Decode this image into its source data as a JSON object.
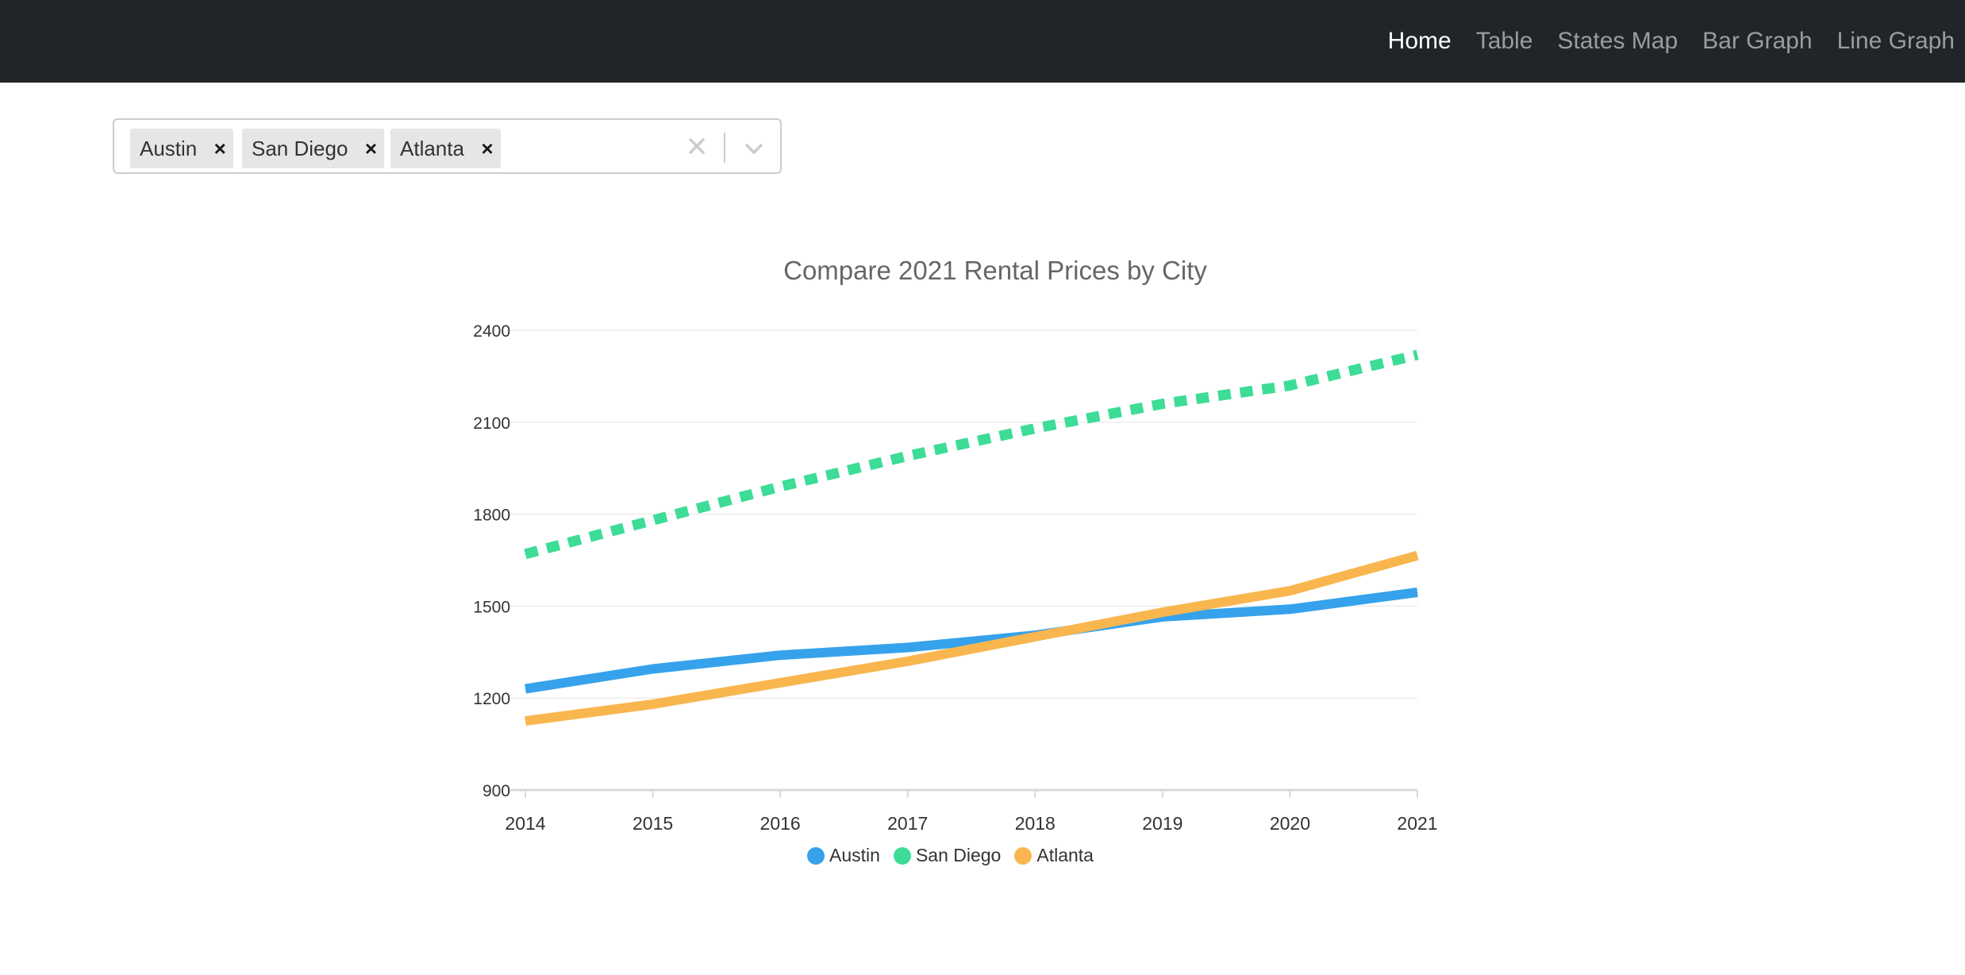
{
  "nav": {
    "items": [
      {
        "label": "Home",
        "active": true
      },
      {
        "label": "Table",
        "active": false
      },
      {
        "label": "States Map",
        "active": false
      },
      {
        "label": "Bar Graph",
        "active": false
      },
      {
        "label": "Line Graph",
        "active": false
      }
    ]
  },
  "select": {
    "chips": [
      "Austin",
      "San Diego",
      "Atlanta"
    ],
    "remove_glyph": "×",
    "clear_icon": "close-icon",
    "dropdown_icon": "chevron-down-icon"
  },
  "chart_data": {
    "type": "line",
    "title": "Compare 2021 Rental Prices by City",
    "xlabel": "",
    "ylabel": "",
    "categories": [
      "2014",
      "2015",
      "2016",
      "2017",
      "2018",
      "2019",
      "2020",
      "2021"
    ],
    "ylim": [
      900,
      2400
    ],
    "yticks": [
      900,
      1200,
      1500,
      1800,
      2100,
      2400
    ],
    "grid": true,
    "legend_position": "bottom",
    "series": [
      {
        "name": "Austin",
        "color": "#36a2eb",
        "dashed": false,
        "values": [
          1230,
          1295,
          1340,
          1365,
          1405,
          1465,
          1490,
          1545
        ]
      },
      {
        "name": "San Diego",
        "color": "#3ddc97",
        "dashed": true,
        "values": [
          1670,
          1780,
          1890,
          1990,
          2080,
          2160,
          2220,
          2320
        ]
      },
      {
        "name": "Atlanta",
        "color": "#f9b64f",
        "dashed": false,
        "values": [
          1125,
          1180,
          1250,
          1320,
          1400,
          1480,
          1550,
          1665
        ]
      }
    ]
  }
}
